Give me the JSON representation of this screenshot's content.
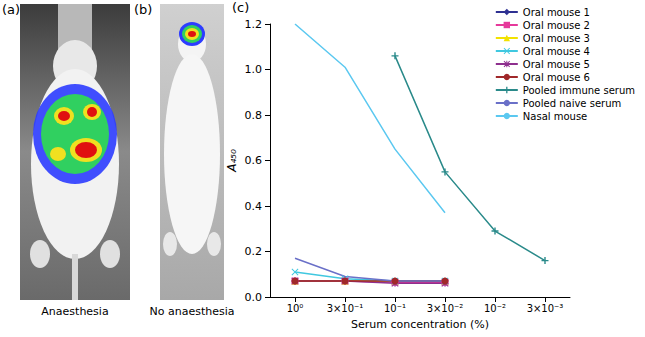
{
  "panels": [
    {
      "letter": "(a)",
      "caption": "Anaesthesia"
    },
    {
      "letter": "(b)",
      "caption": "No anaesthesia"
    },
    {
      "letter": "(c)"
    }
  ],
  "chart_data": {
    "type": "line",
    "x_label": "Serum concentration (%)",
    "y_label": "A₄₅₀",
    "categories": [
      "10⁰",
      "3×10⁻¹",
      "10⁻¹",
      "3×10⁻²",
      "10⁻²",
      "3×10⁻³"
    ],
    "ylim": [
      0,
      1.2
    ],
    "yticks": [
      {
        "value": 0,
        "label": "0.0"
      },
      0.2,
      0.4,
      0.6,
      0.8,
      {
        "value": 1,
        "label": "1.0"
      },
      1.2
    ],
    "grid": false,
    "legend": "top-right",
    "series": [
      {
        "name": "Oral mouse 1",
        "color": "#2e3192",
        "marker": "diamond",
        "values": [
          0.07,
          0.07,
          0.07,
          0.07,
          null,
          null
        ]
      },
      {
        "name": "Oral mouse 2",
        "color": "#e6399b",
        "marker": "square",
        "values": [
          0.07,
          0.07,
          0.065,
          0.065,
          null,
          null
        ]
      },
      {
        "name": "Oral mouse 3",
        "color": "#f2e200",
        "marker": "triangle",
        "values": [
          0.07,
          0.07,
          0.07,
          0.07,
          null,
          null
        ]
      },
      {
        "name": "Oral mouse 4",
        "color": "#40c8e0",
        "marker": "x",
        "values": [
          0.11,
          0.08,
          0.07,
          0.07,
          null,
          null
        ]
      },
      {
        "name": "Oral mouse 5",
        "color": "#8e2f8e",
        "marker": "asterisk",
        "values": [
          0.07,
          0.07,
          0.06,
          0.06,
          null,
          null
        ]
      },
      {
        "name": "Oral mouse 6",
        "color": "#a0282a",
        "marker": "circle",
        "values": [
          0.07,
          0.07,
          0.07,
          0.07,
          null,
          null
        ]
      },
      {
        "name": "Pooled immune serum",
        "color": "#2a8a8a",
        "marker": "plus",
        "values": [
          null,
          null,
          1.06,
          0.55,
          0.29,
          0.16
        ]
      },
      {
        "name": "Pooled naive serum",
        "color": "#6a70c8",
        "marker": "none",
        "values": [
          0.17,
          0.09,
          0.07,
          0.07,
          null,
          null
        ]
      },
      {
        "name": "Nasal mouse",
        "color": "#5bc8f0",
        "marker": "none",
        "values": [
          1.2,
          1.01,
          0.65,
          0.37,
          null,
          null
        ]
      }
    ]
  }
}
